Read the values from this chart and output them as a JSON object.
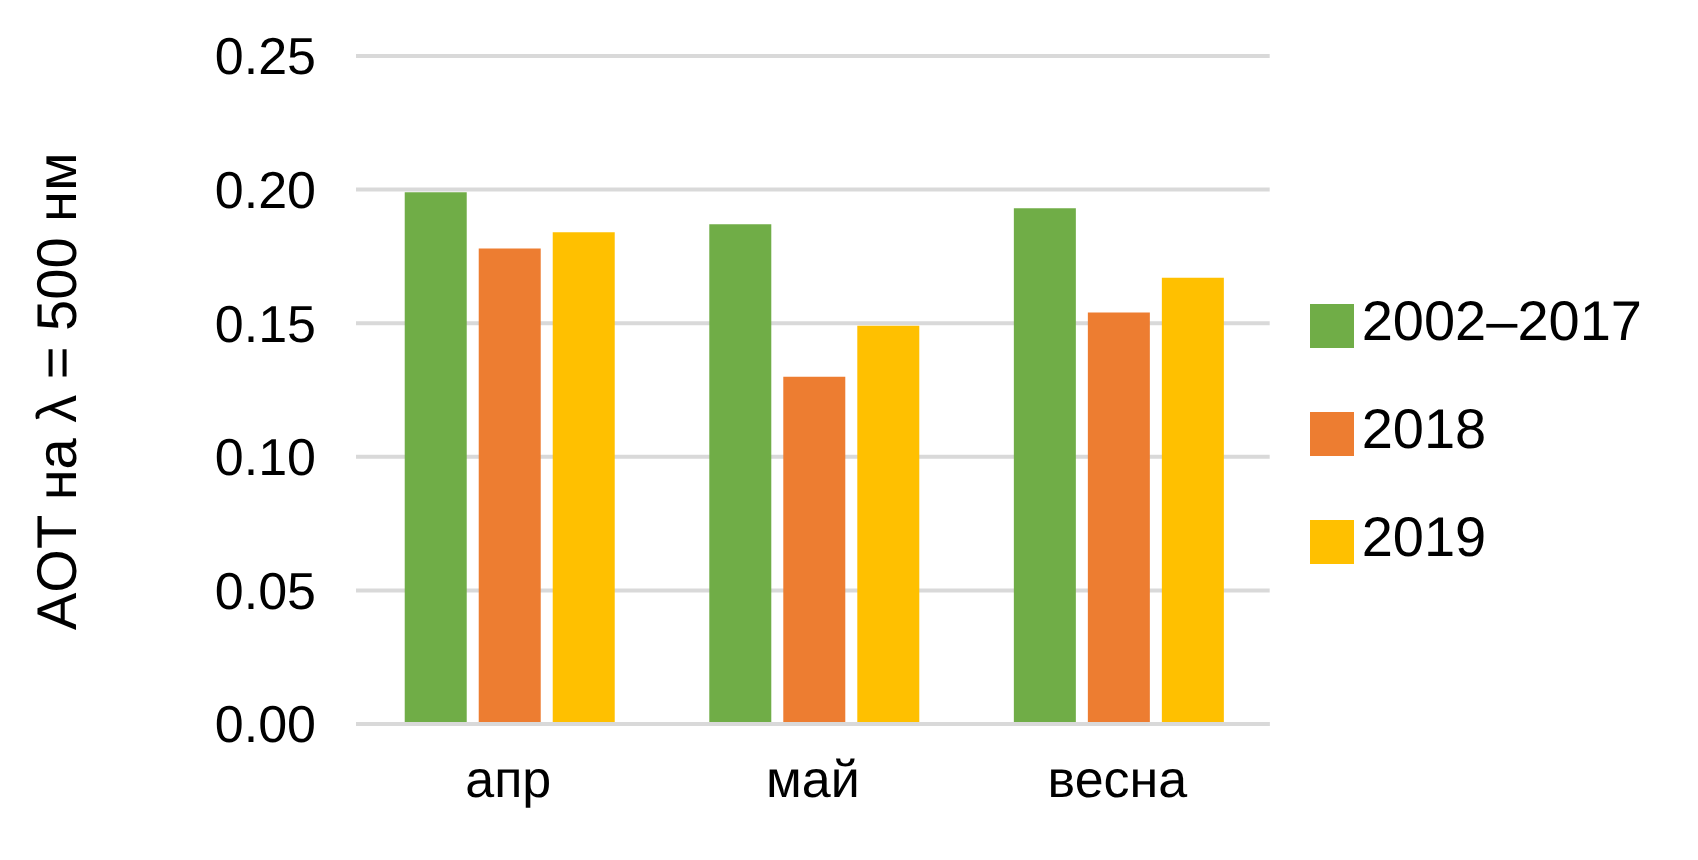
{
  "chart_data": {
    "type": "bar",
    "ylabel": "AOT на λ = 500 нм",
    "categories": [
      "апр",
      "май",
      "весна"
    ],
    "series": [
      {
        "name": "2002–2017",
        "color": "#70ad47",
        "values": [
          0.199,
          0.187,
          0.193
        ]
      },
      {
        "name": "2018",
        "color": "#ed7d31",
        "values": [
          0.178,
          0.13,
          0.154
        ]
      },
      {
        "name": "2019",
        "color": "#ffc000",
        "values": [
          0.184,
          0.149,
          0.167
        ]
      }
    ],
    "ylim": [
      0,
      0.25
    ],
    "yticks": [
      {
        "value": 0,
        "label": "0.00"
      },
      0.05,
      {
        "value": 0.1,
        "label": "0.10"
      },
      0.15,
      {
        "value": 0.2,
        "label": "0.20"
      },
      0.25
    ],
    "grid": "y",
    "legend": "right"
  }
}
